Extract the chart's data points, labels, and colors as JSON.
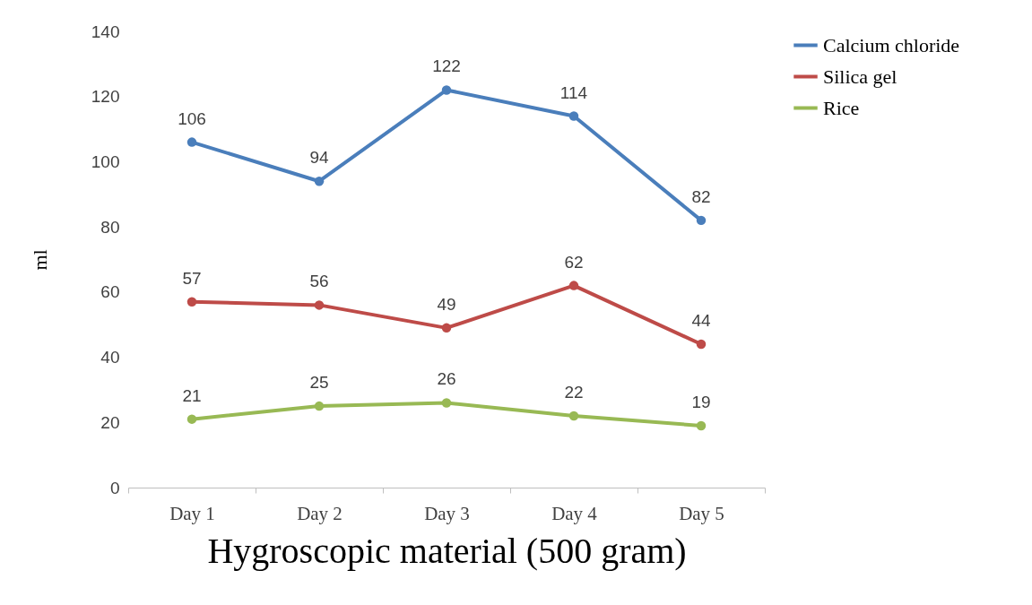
{
  "chart_data": {
    "type": "line",
    "xlabel": "Hygroscopic material (500 gram)",
    "ylabel": "ml",
    "categories": [
      "Day 1",
      "Day 2",
      "Day 3",
      "Day 4",
      "Day 5"
    ],
    "series": [
      {
        "name": "Calcium chloride",
        "color": "#4a7ebb",
        "values": [
          106,
          94,
          122,
          114,
          82
        ]
      },
      {
        "name": "Silica gel",
        "color": "#be4b48",
        "values": [
          57,
          56,
          49,
          62,
          44
        ]
      },
      {
        "name": "Rice",
        "color": "#98b954",
        "values": [
          21,
          25,
          26,
          22,
          19
        ]
      }
    ],
    "ylim": [
      0,
      140
    ],
    "yticks": [
      0,
      20,
      40,
      60,
      80,
      100,
      120,
      140
    ],
    "grid": false,
    "legend": "right",
    "marker": "circle",
    "line_style": "solid",
    "data_labels": true
  }
}
